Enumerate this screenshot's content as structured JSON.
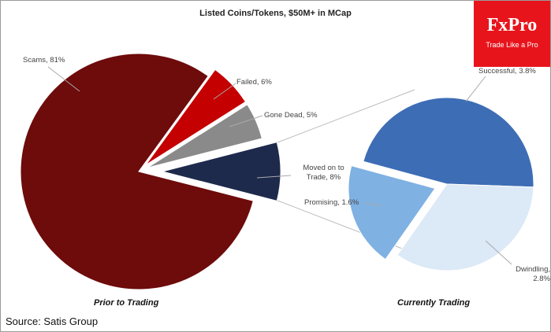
{
  "title": "Listed Coins/Tokens, $50M+  in MCap",
  "source": "Source: Satis Group",
  "logo": {
    "brand": "FxPro",
    "slogan": "Trade Like a Pro"
  },
  "chart_data": [
    {
      "type": "pie",
      "title": "Prior to Trading",
      "categories": [
        "Scams",
        "Failed",
        "Gone Dead",
        "Moved on to Trade"
      ],
      "values": [
        81,
        6,
        5,
        8
      ],
      "value_labels": [
        "Scams, 81%",
        "Failed, 6%",
        "Gone Dead, 5%",
        "Moved on to Trade, 8%"
      ],
      "colors": [
        "#6e0b0b",
        "#c40000",
        "#8a8a8a",
        "#1e2a4c"
      ]
    },
    {
      "type": "pie",
      "title": "Currently Trading",
      "categories": [
        "Successful",
        "Promising",
        "Dwindling"
      ],
      "values": [
        3.8,
        1.6,
        2.8
      ],
      "value_labels": [
        "Successful, 3.8%",
        "Promising, 1.6%",
        "Dwindling, 2.8%"
      ],
      "colors": [
        "#3d6db5",
        "#7fb1e2",
        "#dce9f6"
      ]
    }
  ]
}
